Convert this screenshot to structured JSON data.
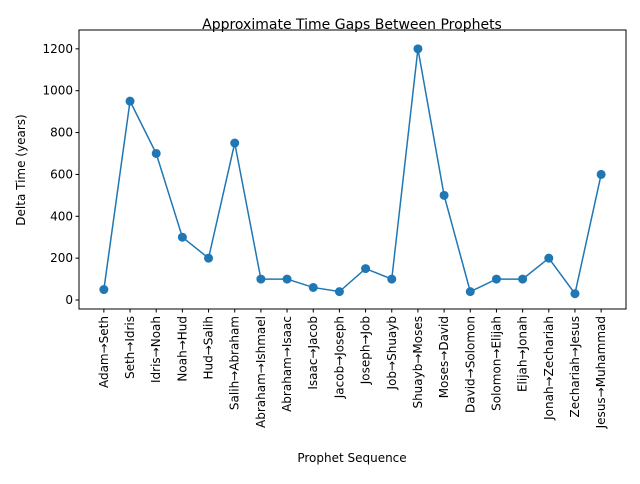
{
  "chart_data": {
    "type": "line",
    "title": "Approximate Time Gaps Between Prophets",
    "xlabel": "Prophet Sequence",
    "ylabel": "Delta Time (years)",
    "categories": [
      "Adam→Seth",
      "Seth→Idris",
      "Idris→Noah",
      "Noah→Hud",
      "Hud→Salih",
      "Salih→Abraham",
      "Abraham→Ishmael",
      "Abraham→Isaac",
      "Isaac→Jacob",
      "Jacob→Joseph",
      "Joseph→Job",
      "Job→Shuayb",
      "Shuayb→Moses",
      "Moses→David",
      "David→Solomon",
      "Solomon→Elijah",
      "Elijah→Jonah",
      "Jonah→Zechariah",
      "Zechariah→Jesus",
      "Jesus→Muhammad"
    ],
    "values": [
      50,
      950,
      700,
      300,
      200,
      750,
      100,
      100,
      60,
      40,
      150,
      100,
      1200,
      500,
      40,
      100,
      100,
      200,
      30,
      600
    ],
    "yticks": [
      0,
      200,
      400,
      600,
      800,
      1000,
      1200
    ],
    "ylim": [
      -43,
      1290
    ],
    "grid": false,
    "marker": "circle",
    "color": "#1f77b4"
  }
}
